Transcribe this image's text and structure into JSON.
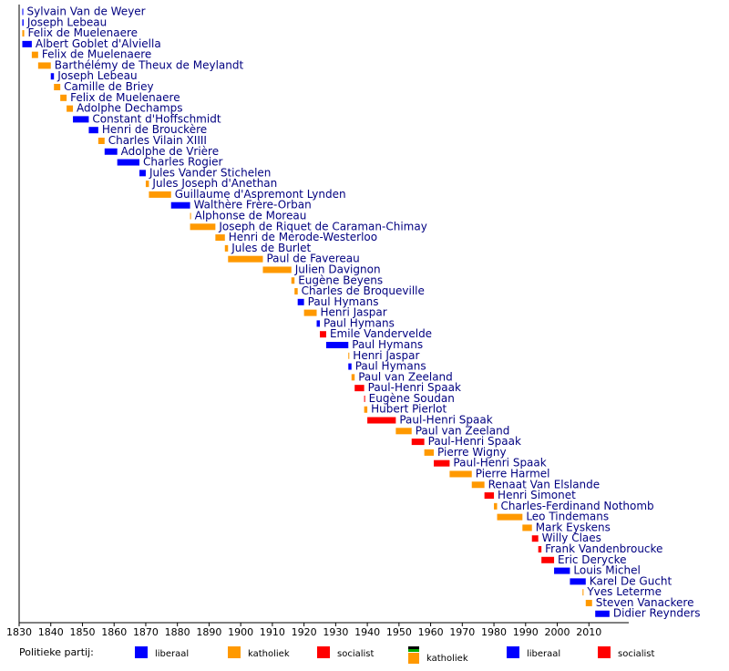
{
  "chart_data": {
    "type": "timeline",
    "categories": [
      "Sylvain Van de Weyer",
      "Joseph Lebeau",
      "Felix de Muelenaere",
      "Albert Goblet d'Alviella",
      "Felix de Muelenaere",
      "Barthélémy de Theux de Meylandt",
      "Joseph Lebeau",
      "Camille de Briey",
      "Felix de Muelenaere",
      "Adolphe Dechamps",
      "Constant d'Hoffschmidt",
      "Henri de Brouckère",
      "Charles Vilain XIIII",
      "Adolphe de Vrière",
      "Charles Rogier",
      "Jules Vander Stichelen",
      "Jules Joseph d'Anethan",
      "Guillaume d'Aspremont Lynden",
      "Walthère Frère-Orban",
      "Alphonse de Moreau",
      "Joseph de Riquet de Caraman-Chimay",
      "Henri de Merode-Westerloo",
      "Jules de Burlet",
      "Paul de Favereau",
      "Julien Davignon",
      "Eugène Beyens",
      "Charles de Broqueville",
      "Paul Hymans",
      "Henri Jaspar",
      "Paul Hymans",
      "Emile Vandervelde",
      "Paul Hymans",
      "Henri Jaspar",
      "Paul Hymans",
      "Paul van Zeeland",
      "Paul-Henri Spaak",
      "Eugène Soudan",
      "Hubert Pierlot",
      "Paul-Henri Spaak",
      "Paul van Zeeland",
      "Paul-Henri Spaak",
      "Pierre Wigny",
      "Paul-Henri Spaak",
      "Pierre Harmel",
      "Renaat Van Elslande",
      "Henri Simonet",
      "Charles-Ferdinand Nothomb",
      "Leo Tindemans",
      "Mark Eyskens",
      "Willy Claes",
      "Frank Vandenbroucke",
      "Eric Derycke",
      "Louis Michel",
      "Karel De Gucht",
      "Yves Leterme",
      "Steven Vanackere",
      "Didier Reynders"
    ],
    "start": [
      1831,
      1831,
      1831,
      1831,
      1834,
      1836,
      1840,
      1841,
      1843,
      1845,
      1847,
      1852,
      1855,
      1857,
      1861,
      1868,
      1870,
      1871,
      1878,
      1884,
      1884,
      1892,
      1895,
      1896,
      1907,
      1916,
      1917,
      1918,
      1920,
      1924,
      1925,
      1927,
      1934,
      1934,
      1935,
      1936,
      1939,
      1939,
      1940,
      1949,
      1954,
      1958,
      1961,
      1966,
      1973,
      1977,
      1980,
      1981,
      1989,
      1992,
      1994,
      1995,
      1999,
      2004,
      2008,
      2009,
      2012
    ],
    "end": [
      1831.3,
      1831.4,
      1831.6,
      1834,
      1836,
      1840,
      1841,
      1843,
      1845,
      1847,
      1852,
      1855,
      1857,
      1861,
      1868,
      1870,
      1871,
      1878,
      1884,
      1884.3,
      1892,
      1895,
      1896,
      1907,
      1916,
      1917,
      1918,
      1920,
      1924,
      1925,
      1927,
      1934,
      1934.3,
      1935,
      1936,
      1939,
      1939.3,
      1940,
      1949,
      1954,
      1958,
      1961,
      1966,
      1973,
      1977,
      1980,
      1981,
      1989,
      1992,
      1994,
      1995,
      1999,
      2004,
      2009,
      2008.3,
      2011,
      2016.5
    ],
    "colors": [
      "#0000ff",
      "#0000ff",
      "#ff9900",
      "#0000ff",
      "#ff9900",
      "#ff9900",
      "#0000ff",
      "#ff9900",
      "#ff9900",
      "#ff9900",
      "#0000ff",
      "#0000ff",
      "#ff9900",
      "#0000ff",
      "#0000ff",
      "#0000ff",
      "#ff9900",
      "#ff9900",
      "#0000ff",
      "#ff9900",
      "#ff9900",
      "#ff9900",
      "#ff9900",
      "#ff9900",
      "#ff9900",
      "#ff9900",
      "#ff9900",
      "#0000ff",
      "#ff9900",
      "#0000ff",
      "#ff0000",
      "#0000ff",
      "#ff9900",
      "#0000ff",
      "#ff9900",
      "#ff0000",
      "#ff0000",
      "#ff9900",
      "#ff0000",
      "#ff9900",
      "#ff0000",
      "#ff9900",
      "#ff0000",
      "#ff9900",
      "#ff9900",
      "#ff0000",
      "#ff9900",
      "#ff9900",
      "#ff9900",
      "#ff0000",
      "#ff0000",
      "#ff0000",
      "#0000ff",
      "#0000ff",
      "#ff9900",
      "#ff9900",
      "#0000ff"
    ],
    "xlim": [
      1830,
      2020
    ],
    "xticks": [
      1830,
      1840,
      1850,
      1860,
      1870,
      1880,
      1890,
      1900,
      1910,
      1920,
      1930,
      1940,
      1950,
      1960,
      1970,
      1980,
      1990,
      2000,
      2010
    ],
    "legend_title": "Politieke partij:",
    "legend": [
      {
        "name": "liberaal",
        "color": "#0000ff"
      },
      {
        "name": "katholiek",
        "color": "#ff9900"
      },
      {
        "name": "socialist",
        "color": "#ff0000"
      },
      {
        "name": "katholiek",
        "color": "#ff9900",
        "stripe": [
          "#000000",
          "#00aa00"
        ]
      },
      {
        "name": "liberaal",
        "color": "#0000ff"
      },
      {
        "name": "socialist",
        "color": "#ff0000"
      }
    ]
  }
}
